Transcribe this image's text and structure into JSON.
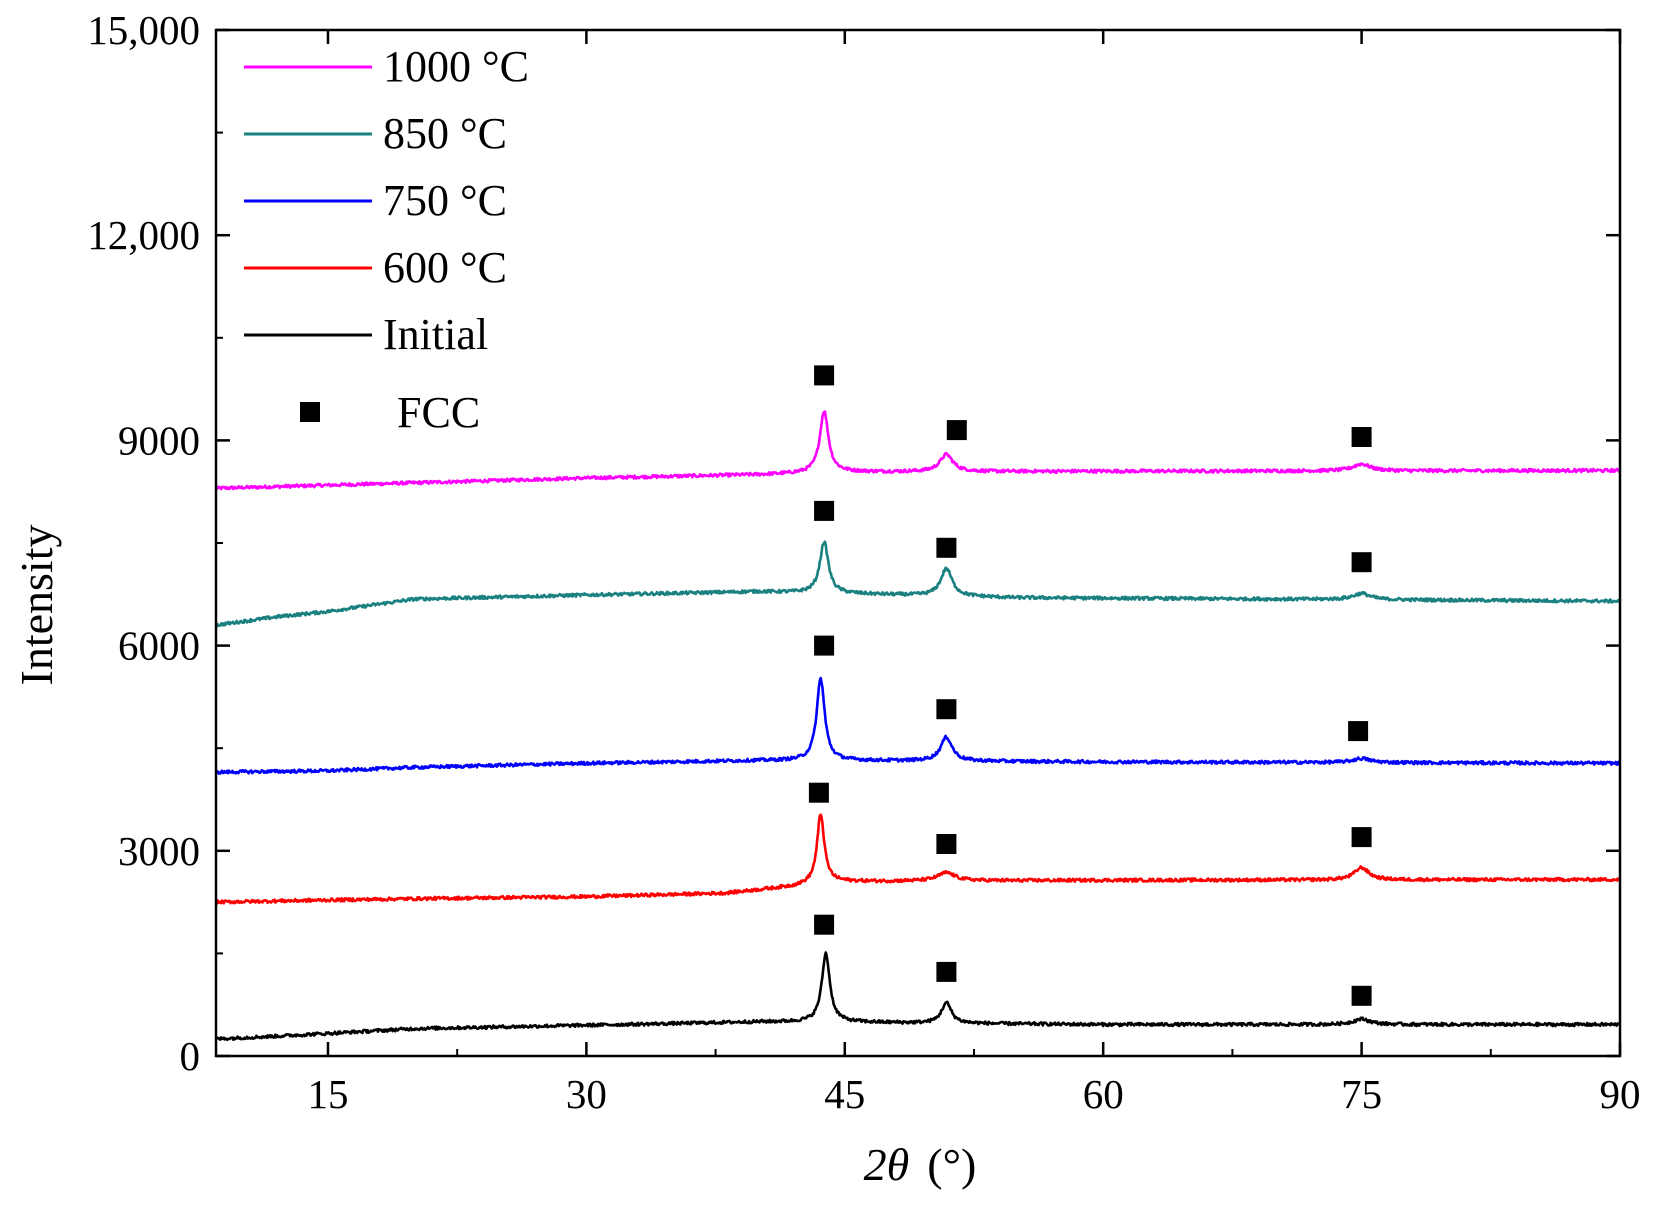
{
  "chart_data": {
    "type": "line",
    "title": "",
    "xlabel_prefix": "2",
    "xlabel_symbol": "θ",
    "xlabel_unit": "(°)",
    "ylabel": "Intensity",
    "xlim": [
      8.5,
      90
    ],
    "ylim": [
      0,
      15000
    ],
    "x_ticks": [
      15,
      30,
      45,
      60,
      75,
      90
    ],
    "x_tick_labels": [
      "15",
      "30",
      "45",
      "60",
      "75",
      "90"
    ],
    "y_ticks": [
      0,
      3000,
      6000,
      9000,
      12000,
      15000
    ],
    "y_tick_labels": [
      "0",
      "3000",
      "6000",
      "9000",
      "12,000",
      "15,000"
    ],
    "legend_position": "top-left",
    "series": [
      {
        "name": "1000 °C",
        "color": "#ff00ff",
        "baseline": [
          [
            8.5,
            8300
          ],
          [
            20,
            8380
          ],
          [
            30,
            8450
          ],
          [
            40,
            8500
          ],
          [
            45,
            8540
          ],
          [
            60,
            8550
          ],
          [
            90,
            8560
          ]
        ],
        "peaks": [
          [
            43.8,
            900,
            0.3
          ],
          [
            50.9,
            250,
            0.45
          ],
          [
            75.0,
            100,
            0.6
          ]
        ]
      },
      {
        "name": "850 °C",
        "color": "#1a8080",
        "baseline": [
          [
            8.5,
            6300
          ],
          [
            12,
            6420
          ],
          [
            15,
            6500
          ],
          [
            20,
            6680
          ],
          [
            30,
            6740
          ],
          [
            40,
            6790
          ],
          [
            45,
            6760
          ],
          [
            55,
            6700
          ],
          [
            70,
            6680
          ],
          [
            90,
            6650
          ]
        ],
        "peaks": [
          [
            43.8,
            750,
            0.3
          ],
          [
            50.9,
            400,
            0.4
          ],
          [
            75.0,
            90,
            0.6
          ]
        ]
      },
      {
        "name": "750 °C",
        "color": "#0000ff",
        "baseline": [
          [
            8.5,
            4150
          ],
          [
            15,
            4170
          ],
          [
            20,
            4220
          ],
          [
            30,
            4280
          ],
          [
            40,
            4320
          ],
          [
            45,
            4320
          ],
          [
            60,
            4300
          ],
          [
            90,
            4280
          ]
        ],
        "peaks": [
          [
            43.6,
            1200,
            0.28
          ],
          [
            50.9,
            350,
            0.4
          ],
          [
            75.0,
            60,
            0.6
          ]
        ]
      },
      {
        "name": "600 °C",
        "color": "#ff0000",
        "baseline": [
          [
            8.5,
            2250
          ],
          [
            15,
            2280
          ],
          [
            20,
            2300
          ],
          [
            30,
            2330
          ],
          [
            38,
            2380
          ],
          [
            42,
            2480
          ],
          [
            44,
            2550
          ],
          [
            50,
            2560
          ],
          [
            60,
            2570
          ],
          [
            90,
            2580
          ]
        ],
        "peaks": [
          [
            43.6,
            1000,
            0.25
          ],
          [
            50.9,
            120,
            0.6
          ],
          [
            75.0,
            180,
            0.5
          ]
        ]
      },
      {
        "name": "Initial",
        "color": "#000000",
        "baseline": [
          [
            8.5,
            250
          ],
          [
            12,
            290
          ],
          [
            15,
            330
          ],
          [
            20,
            400
          ],
          [
            30,
            450
          ],
          [
            40,
            500
          ],
          [
            44,
            500
          ],
          [
            50,
            480
          ],
          [
            60,
            460
          ],
          [
            90,
            460
          ]
        ],
        "peaks": [
          [
            43.9,
            1000,
            0.28
          ],
          [
            50.9,
            300,
            0.35
          ],
          [
            75.0,
            80,
            0.6
          ]
        ]
      }
    ],
    "markers": {
      "name": "FCC",
      "symbol": "filled-square",
      "points": [
        [
          43.8,
          9950
        ],
        [
          51.5,
          9150
        ],
        [
          75.0,
          9050
        ],
        [
          43.8,
          7970
        ],
        [
          50.9,
          7430
        ],
        [
          75.0,
          7220
        ],
        [
          43.8,
          6000
        ],
        [
          50.9,
          5070
        ],
        [
          74.8,
          4750
        ],
        [
          43.5,
          3850
        ],
        [
          50.9,
          3100
        ],
        [
          75.0,
          3200
        ],
        [
          43.8,
          1920
        ],
        [
          50.9,
          1230
        ],
        [
          75.0,
          880
        ]
      ]
    }
  }
}
